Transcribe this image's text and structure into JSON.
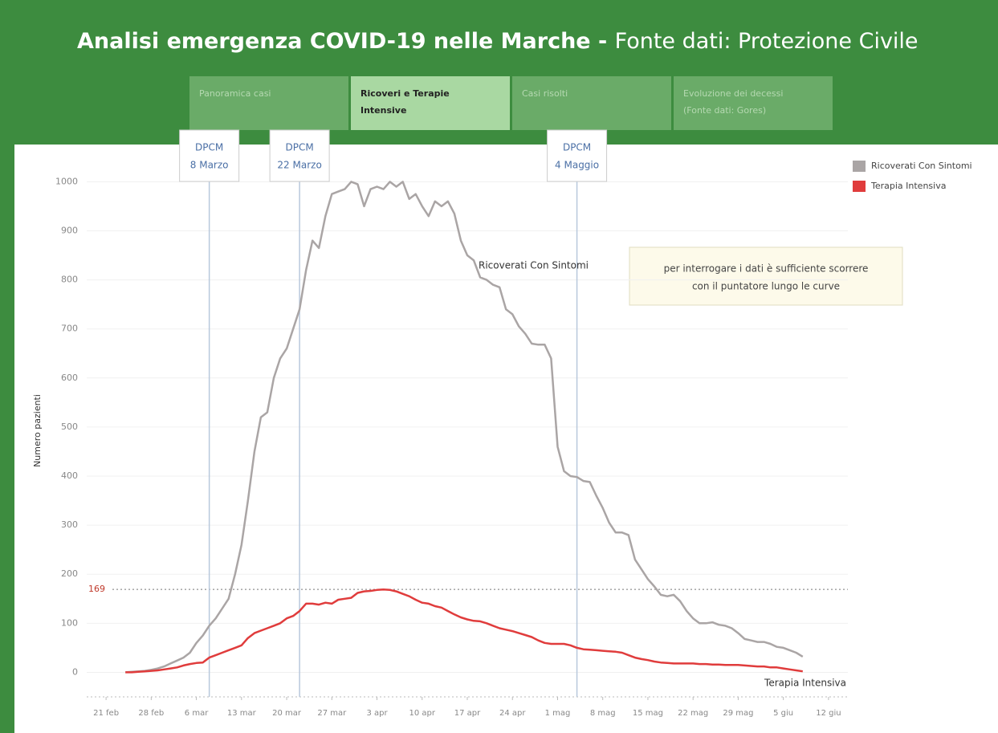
{
  "header": {
    "title": "Analisi emergenza COVID-19 nelle Marche - ",
    "source": "Fonte dati: Protezione Civile"
  },
  "tabs": [
    {
      "lines": [
        "Panoramica casi"
      ]
    },
    {
      "lines": [
        "Ricoveri e Terapie",
        "Intensive"
      ],
      "active": true
    },
    {
      "lines": [
        "Casi risolti"
      ]
    },
    {
      "lines": [
        "Evoluzione dei decessi",
        "(Fonte dati: Gores)"
      ]
    }
  ],
  "note": [
    "per interrogare i dati è sufficiente scorrere",
    "con il puntatore lungo le curve"
  ],
  "chart_data": {
    "type": "line",
    "ylabel": "Numero pazienti",
    "x": [
      "24 feb",
      "25 feb",
      "26 feb",
      "27 feb",
      "28 feb",
      "29 feb",
      "1 mar",
      "2 mar",
      "3 mar",
      "4 mar",
      "5 mar",
      "6 mar",
      "7 mar",
      "8 mar",
      "9 mar",
      "10 mar",
      "11 mar",
      "12 mar",
      "13 mar",
      "14 mar",
      "15 mar",
      "16 mar",
      "17 mar",
      "18 mar",
      "19 mar",
      "20 mar",
      "21 mar",
      "22 mar",
      "23 mar",
      "24 mar",
      "25 mar",
      "26 mar",
      "27 mar",
      "28 mar",
      "29 mar",
      "30 mar",
      "31 mar",
      "1 apr",
      "2 apr",
      "3 apr",
      "4 apr",
      "5 apr",
      "6 apr",
      "7 apr",
      "8 apr",
      "9 apr",
      "10 apr",
      "11 apr",
      "12 apr",
      "13 apr",
      "14 apr",
      "15 apr",
      "16 apr",
      "17 apr",
      "18 apr",
      "19 apr",
      "20 apr",
      "21 apr",
      "22 apr",
      "23 apr",
      "24 apr",
      "25 apr",
      "26 apr",
      "27 apr",
      "28 apr",
      "29 apr",
      "30 apr",
      "1 mag",
      "2 mag",
      "3 mag",
      "4 mag",
      "5 mag",
      "6 mag",
      "7 mag",
      "8 mag",
      "9 mag",
      "10 mag",
      "11 mag",
      "12 mag",
      "13 mag",
      "14 mag",
      "15 mag",
      "16 mag",
      "17 mag",
      "18 mag",
      "19 mag",
      "20 mag",
      "21 mag",
      "22 mag",
      "23 mag",
      "24 mag",
      "25 mag",
      "26 mag",
      "27 mag",
      "28 mag",
      "29 mag",
      "30 mag",
      "31 mag",
      "1 giu",
      "2 giu",
      "3 giu",
      "4 giu",
      "5 giu",
      "6 giu",
      "7 giu",
      "8 giu"
    ],
    "series": [
      {
        "name": "Ricoverati Con Sintomi",
        "color": "#aaa5a5",
        "values": [
          0,
          1,
          2,
          3,
          5,
          8,
          12,
          18,
          24,
          30,
          40,
          60,
          75,
          95,
          110,
          130,
          150,
          200,
          260,
          350,
          450,
          520,
          530,
          600,
          640,
          660,
          700,
          740,
          820,
          880,
          865,
          930,
          975,
          980,
          985,
          1000,
          995,
          950,
          985,
          990,
          985,
          1000,
          990,
          1000,
          965,
          975,
          950,
          930,
          960,
          950,
          960,
          935,
          880,
          850,
          840,
          805,
          800,
          790,
          785,
          740,
          730,
          705,
          690,
          670,
          668,
          668,
          640,
          460,
          410,
          400,
          398,
          390,
          388,
          360,
          335,
          305,
          285,
          285,
          280,
          230,
          210,
          190,
          175,
          158,
          155,
          158,
          145,
          125,
          110,
          100,
          100,
          102,
          97,
          95,
          90,
          80,
          68,
          65,
          62,
          62,
          58,
          52,
          50,
          45,
          40,
          32
        ]
      },
      {
        "name": "Terapia Intensiva",
        "color": "#e03c3c",
        "values": [
          0,
          0,
          1,
          2,
          3,
          4,
          6,
          8,
          10,
          14,
          17,
          19,
          20,
          30,
          35,
          40,
          45,
          50,
          55,
          70,
          80,
          85,
          90,
          95,
          100,
          110,
          115,
          125,
          140,
          140,
          138,
          142,
          140,
          148,
          150,
          152,
          162,
          165,
          166,
          168,
          169,
          168,
          165,
          160,
          155,
          148,
          142,
          140,
          135,
          132,
          125,
          118,
          112,
          108,
          105,
          104,
          100,
          95,
          90,
          87,
          84,
          80,
          76,
          72,
          65,
          60,
          58,
          58,
          58,
          55,
          50,
          47,
          46,
          45,
          44,
          43,
          42,
          40,
          35,
          30,
          27,
          25,
          22,
          20,
          19,
          18,
          18,
          18,
          18,
          17,
          17,
          16,
          16,
          15,
          15,
          15,
          14,
          13,
          12,
          12,
          10,
          10,
          8,
          6,
          4,
          2
        ]
      }
    ],
    "xlim": [
      "18 feb",
      "15 giu"
    ],
    "xticks": [
      "21 feb",
      "28 feb",
      "6 mar",
      "13 mar",
      "20 mar",
      "27 mar",
      "3 apr",
      "10 apr",
      "17 apr",
      "24 apr",
      "1 mag",
      "8 mag",
      "15 mag",
      "22 mag",
      "29 mag",
      "5 giu",
      "12 giu"
    ],
    "ylim": [
      -50,
      1035
    ],
    "yticks": [
      0,
      100,
      200,
      300,
      400,
      500,
      600,
      700,
      800,
      900,
      1000
    ],
    "grid": true,
    "reference_line": 169,
    "reference_color": "#c0392b",
    "annotations": [
      {
        "x": "8 mar",
        "text": [
          "DPCM",
          "8 Marzo"
        ]
      },
      {
        "x": "22 mar",
        "text": [
          "DPCM",
          "22 Marzo"
        ]
      },
      {
        "x": "4 mag",
        "text": [
          "DPCM",
          "4 Maggio"
        ]
      }
    ],
    "legend": "top-right"
  }
}
